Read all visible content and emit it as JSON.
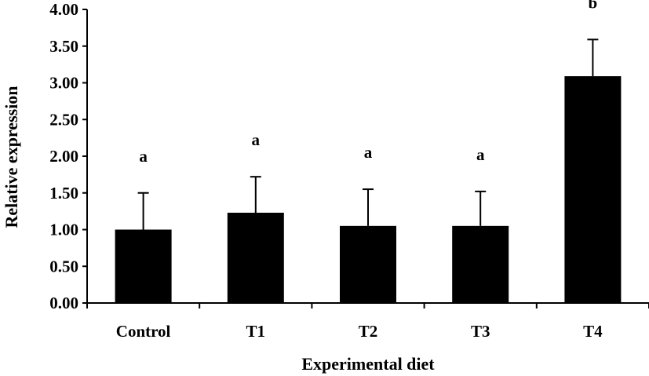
{
  "chart_data": {
    "type": "bar",
    "title": "",
    "xlabel": "Experimental diet",
    "ylabel": "Relative expression",
    "categories": [
      "Control",
      "T1",
      "T2",
      "T3",
      "T4"
    ],
    "values": [
      1.0,
      1.23,
      1.05,
      1.05,
      3.09
    ],
    "error_upper": [
      1.5,
      1.72,
      1.55,
      1.52,
      3.59
    ],
    "significance": [
      "a",
      "a",
      "a",
      "a",
      "b"
    ],
    "ylim": [
      0,
      4
    ],
    "yticks": [
      "0.00",
      "0.50",
      "1.00",
      "1.50",
      "2.00",
      "2.50",
      "3.00",
      "3.50",
      "4.00"
    ],
    "grid": false,
    "bar_color": "#000000"
  }
}
